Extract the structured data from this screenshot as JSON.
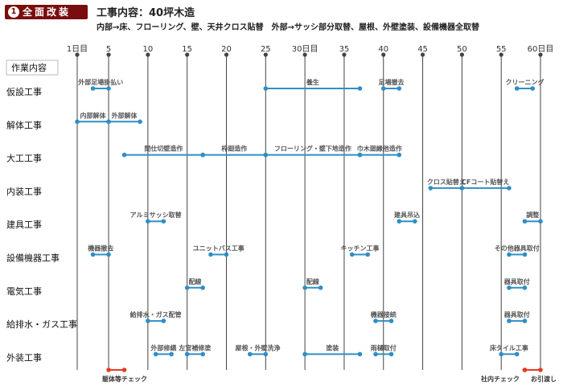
{
  "header": {
    "badge_num": "1",
    "badge_text": "全面改装",
    "title_label": "工事内容：",
    "title_value": "40坪木造",
    "subtitle": "内部→床、フローリング、壁、天井クロス貼替　外部→サッシ部分取替、屋根、外壁塗装、設備機器全取替"
  },
  "colors": {
    "bar": "#2f8fc4",
    "check": "#e63c1e",
    "axis": "#444444",
    "badge": "#7a0d0d"
  },
  "chart_data": {
    "type": "gantt",
    "x_axis": {
      "ticks": [
        1,
        5,
        10,
        15,
        20,
        25,
        30,
        35,
        40,
        45,
        50,
        55,
        60
      ],
      "tick_labels": [
        "1日目",
        "5",
        "10",
        "15",
        "20",
        "25",
        "30日目",
        "35",
        "40",
        "45",
        "50",
        "55",
        "60日目"
      ],
      "range": [
        1,
        60
      ]
    },
    "column_header": "作業内容",
    "rows": [
      {
        "category": "仮設工事",
        "tasks": [
          {
            "label": "外部足場掛払い",
            "start": 3,
            "end": 5
          },
          {
            "label": "養生",
            "start": 25,
            "end": 37
          },
          {
            "label": "足場撤去",
            "start": 40,
            "end": 42
          },
          {
            "label": "クリーニング",
            "start": 57,
            "end": 59
          }
        ]
      },
      {
        "category": "解体工事",
        "tasks": [
          {
            "label": "内部解体",
            "start": 1,
            "end": 5
          },
          {
            "label": "外部解体",
            "start": 5,
            "end": 9
          }
        ]
      },
      {
        "category": "大工工事",
        "tasks": [
          {
            "label": "間仕切壁造作",
            "start": 7,
            "end": 17
          },
          {
            "label": "枠廻造作",
            "start": 17,
            "end": 25
          },
          {
            "label": "フローリング・壁下地造作",
            "start": 25,
            "end": 37
          },
          {
            "label": "巾木廻縁他造作",
            "start": 37,
            "end": 42
          }
        ]
      },
      {
        "category": "内装工事",
        "tasks": [
          {
            "label": "クロス貼替え",
            "start": 46,
            "end": 50
          },
          {
            "label": "CFコート貼替え",
            "start": 50,
            "end": 56
          }
        ]
      },
      {
        "category": "建具工事",
        "tasks": [
          {
            "label": "アルミサッシ取替",
            "start": 10,
            "end": 12
          },
          {
            "label": "建具吊込",
            "start": 42,
            "end": 44
          },
          {
            "label": "調整",
            "start": 58,
            "end": 60
          }
        ]
      },
      {
        "category": "設備機器工事",
        "tasks": [
          {
            "label": "機器撤去",
            "start": 3,
            "end": 5
          },
          {
            "label": "ユニットバス工事",
            "start": 18,
            "end": 20
          },
          {
            "label": "キッチン工事",
            "start": 36,
            "end": 38
          },
          {
            "label": "その他器具取付",
            "start": 56,
            "end": 58
          }
        ]
      },
      {
        "category": "電気工事",
        "tasks": [
          {
            "label": "配線",
            "start": 15,
            "end": 17
          },
          {
            "label": "配線",
            "start": 30,
            "end": 32
          },
          {
            "label": "器具取付",
            "start": 56,
            "end": 58
          }
        ]
      },
      {
        "category": "給排水・ガス工事",
        "tasks": [
          {
            "label": "給排水・ガス配管",
            "start": 10,
            "end": 12
          },
          {
            "label": "機器接続",
            "start": 39,
            "end": 41
          },
          {
            "label": "器具取付",
            "start": 56,
            "end": 58
          }
        ]
      },
      {
        "category": "外装工事",
        "tasks": [
          {
            "label": "外部修繕",
            "start": 11,
            "end": 13
          },
          {
            "label": "左官補修塗",
            "start": 15,
            "end": 17
          },
          {
            "label": "屋根・外壁洗浄",
            "start": 23,
            "end": 25
          },
          {
            "label": "塗装",
            "start": 30,
            "end": 37
          },
          {
            "label": "雨樋取付",
            "start": 39,
            "end": 41
          },
          {
            "label": "床タイル工事",
            "start": 55,
            "end": 57
          }
        ]
      }
    ],
    "checkpoints": [
      {
        "label": "躯体等チェック",
        "start": 5,
        "end": 7
      },
      {
        "label": "社内チェック",
        "start": 58,
        "end": 58
      },
      {
        "label": "お引渡し",
        "start": 58,
        "end": 60
      }
    ]
  }
}
